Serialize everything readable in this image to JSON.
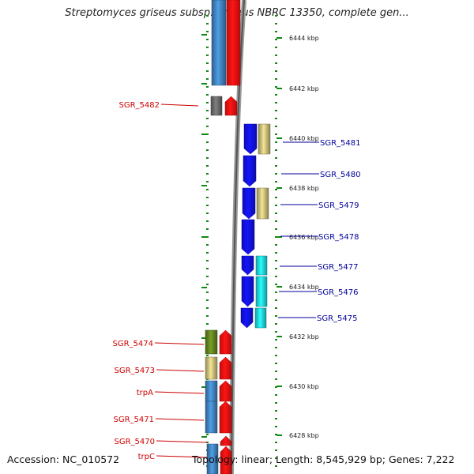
{
  "header": {
    "title": "Streptomyces griseus subsp. griseus NBRC 13350, complete gen..."
  },
  "footer": {
    "accession": "Accession: NC_010572",
    "topology": "Topology: linear; Length: 8,545,929 bp; Genes: 7,222"
  },
  "colors": {
    "red": "#ff1111",
    "blue": "#1111ee",
    "steel": "#3f7fb8",
    "khaki": "#c2b776",
    "cyan": "#1fd0d8",
    "olive": "#5f7f1f",
    "grey": "#666666",
    "tick": "#118811",
    "reverse_label": "#cc0000",
    "forward_label": "#000099"
  },
  "ruler": {
    "ticks": [
      "6444 kbp",
      "6442 kbp",
      "6440 kbp",
      "6438 kbp",
      "6436 kbp",
      "6434 kbp",
      "6432 kbp",
      "6430 kbp",
      "6428 kbp"
    ]
  },
  "genes": {
    "reverse": [
      {
        "label": "SGR_5482"
      },
      {
        "label": "SGR_5474"
      },
      {
        "label": "SGR_5473"
      },
      {
        "label": "trpA"
      },
      {
        "label": "SGR_5471"
      },
      {
        "label": "SGR_5470"
      },
      {
        "label": "trpC"
      }
    ],
    "forward": [
      {
        "label": "SGR_5481"
      },
      {
        "label": "SGR_5480"
      },
      {
        "label": "SGR_5479"
      },
      {
        "label": "SGR_5478"
      },
      {
        "label": "SGR_5477"
      },
      {
        "label": "SGR_5476"
      },
      {
        "label": "SGR_5475"
      }
    ]
  }
}
